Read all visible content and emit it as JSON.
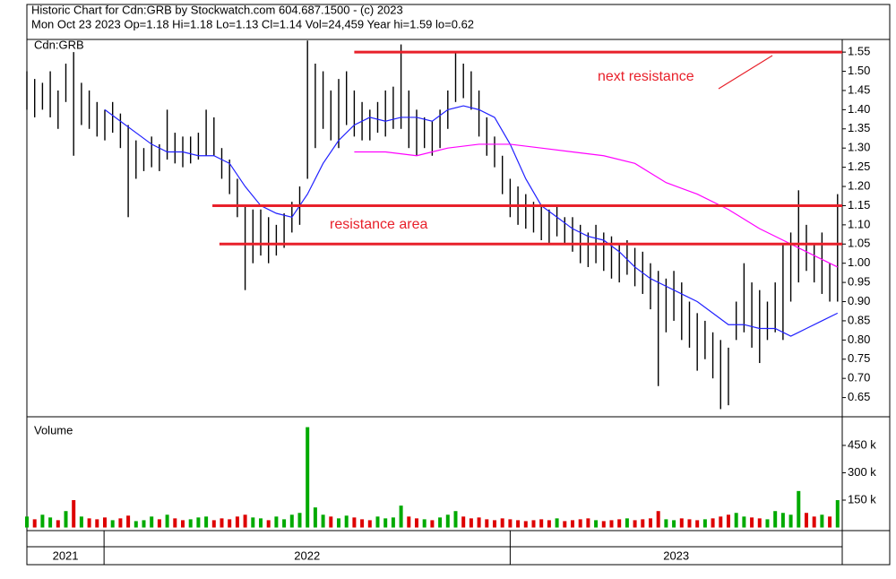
{
  "chart_data": {
    "type": "ohlc",
    "title": "Historic Chart for Cdn:GRB by Stockwatch.com 604.687.1500 - (c) 2023",
    "subtitle": "Mon Oct 23 2023   Op=1.18   Hi=1.18   Lo=1.13   Cl=1.14   Vol=24,459   Year hi=1.59   lo=0.62",
    "symbol_label": "Cdn:GRB",
    "volume_label": "Volume",
    "bar_color": "#000000",
    "x": [
      0,
      1,
      2,
      3,
      4,
      5,
      6,
      7,
      8,
      9,
      10,
      11,
      12,
      13,
      14,
      15,
      16,
      17,
      18,
      19,
      20,
      21,
      22,
      23,
      24,
      25,
      26,
      27,
      28,
      29,
      30,
      31,
      32,
      33,
      34,
      35,
      36,
      37,
      38,
      39,
      40,
      41,
      42,
      43,
      44,
      45,
      46,
      47,
      48,
      49,
      50,
      51,
      52,
      53,
      54,
      55,
      56,
      57,
      58,
      59,
      60,
      61,
      62,
      63,
      64,
      65,
      66,
      67,
      68,
      69,
      70,
      71,
      72,
      73,
      74,
      75,
      76,
      77,
      78,
      79,
      80,
      81,
      82,
      83,
      84,
      85,
      86,
      87,
      88,
      89,
      90,
      91,
      92,
      93,
      94,
      95,
      96,
      97,
      98,
      99,
      100,
      101,
      102,
      103,
      104
    ],
    "high": [
      1.5,
      1.48,
      1.47,
      1.5,
      1.45,
      1.52,
      1.55,
      1.47,
      1.45,
      1.42,
      1.4,
      1.42,
      1.39,
      1.36,
      1.32,
      1.3,
      1.33,
      1.31,
      1.4,
      1.34,
      1.33,
      1.33,
      1.34,
      1.4,
      1.38,
      1.3,
      1.27,
      1.22,
      1.15,
      1.14,
      1.14,
      1.12,
      1.1,
      1.13,
      1.16,
      1.2,
      1.58,
      1.52,
      1.5,
      1.45,
      1.48,
      1.5,
      1.45,
      1.42,
      1.4,
      1.42,
      1.45,
      1.46,
      1.57,
      1.45,
      1.4,
      1.38,
      1.37,
      1.4,
      1.45,
      1.55,
      1.52,
      1.5,
      1.45,
      1.38,
      1.33,
      1.28,
      1.22,
      1.2,
      1.18,
      1.16,
      1.15,
      1.14,
      1.15,
      1.12,
      1.12,
      1.1,
      1.08,
      1.1,
      1.08,
      1.07,
      1.05,
      1.06,
      1.04,
      1.03,
      1.0,
      0.98,
      0.96,
      0.98,
      0.95,
      0.9,
      0.87,
      0.85,
      0.82,
      0.8,
      0.78,
      0.9,
      1.0,
      0.95,
      0.93,
      0.9,
      0.95,
      1.05,
      1.08,
      1.19,
      1.1,
      1.05,
      1.08,
      1.0,
      1.18
    ],
    "low": [
      1.4,
      1.38,
      1.4,
      1.38,
      1.35,
      1.42,
      1.28,
      1.36,
      1.35,
      1.33,
      1.32,
      1.34,
      1.3,
      1.12,
      1.22,
      1.24,
      1.25,
      1.24,
      1.27,
      1.26,
      1.25,
      1.26,
      1.27,
      1.28,
      1.28,
      1.22,
      1.18,
      1.12,
      0.93,
      1.0,
      1.02,
      1.0,
      1.02,
      1.04,
      1.08,
      1.1,
      1.22,
      1.3,
      1.35,
      1.32,
      1.3,
      1.36,
      1.33,
      1.32,
      1.32,
      1.34,
      1.33,
      1.35,
      1.35,
      1.3,
      1.28,
      1.3,
      1.28,
      1.3,
      1.35,
      1.42,
      1.43,
      1.4,
      1.33,
      1.28,
      1.25,
      1.18,
      1.12,
      1.1,
      1.09,
      1.08,
      1.06,
      1.05,
      1.07,
      1.05,
      1.03,
      1.0,
      0.99,
      1.0,
      0.98,
      0.96,
      0.95,
      0.97,
      0.94,
      0.92,
      0.88,
      0.68,
      0.82,
      0.85,
      0.8,
      0.78,
      0.72,
      0.75,
      0.7,
      0.62,
      0.63,
      0.8,
      0.82,
      0.78,
      0.74,
      0.8,
      0.82,
      0.8,
      0.9,
      0.95,
      0.98,
      0.95,
      0.92,
      0.9,
      0.9
    ],
    "volume": [
      60000,
      45000,
      70000,
      55000,
      40000,
      90000,
      150000,
      60000,
      50000,
      45000,
      55000,
      40000,
      50000,
      65000,
      35000,
      40000,
      60000,
      45000,
      70000,
      50000,
      40000,
      45000,
      55000,
      60000,
      40000,
      50000,
      45000,
      60000,
      70000,
      55000,
      50000,
      40000,
      60000,
      45000,
      70000,
      80000,
      550000,
      110000,
      70000,
      60000,
      50000,
      65000,
      55000,
      45000,
      40000,
      60000,
      50000,
      55000,
      120000,
      60000,
      50000,
      45000,
      40000,
      55000,
      70000,
      90000,
      60000,
      50000,
      55000,
      45000,
      40000,
      50000,
      45000,
      40000,
      35000,
      40000,
      45000,
      40000,
      50000,
      35000,
      40000,
      45000,
      50000,
      40000,
      35000,
      40000,
      45000,
      50000,
      40000,
      45000,
      50000,
      90000,
      45000,
      40000,
      50000,
      45000,
      40000,
      45000,
      50000,
      60000,
      70000,
      80000,
      60000,
      55000,
      50000,
      45000,
      90000,
      80000,
      70000,
      200000,
      80000,
      60000,
      70000,
      60000,
      150000
    ],
    "up_color": "#00aa00",
    "down_color": "#dd0000",
    "averages": [
      {
        "color": "#2020ff",
        "x": [
          10,
          12,
          14,
          16,
          18,
          20,
          22,
          24,
          26,
          28,
          30,
          32,
          34,
          36,
          38,
          40,
          42,
          44,
          46,
          48,
          50,
          52,
          54,
          56,
          58,
          60,
          62,
          64,
          66,
          68,
          70,
          72,
          74,
          76,
          78,
          80,
          82,
          84,
          86,
          88,
          90,
          92,
          94,
          96,
          98,
          100,
          102,
          104
        ],
        "values": [
          1.4,
          1.37,
          1.34,
          1.31,
          1.29,
          1.29,
          1.28,
          1.28,
          1.26,
          1.2,
          1.15,
          1.13,
          1.12,
          1.18,
          1.26,
          1.32,
          1.36,
          1.38,
          1.37,
          1.38,
          1.38,
          1.37,
          1.4,
          1.41,
          1.4,
          1.38,
          1.31,
          1.22,
          1.15,
          1.12,
          1.09,
          1.07,
          1.06,
          1.03,
          0.99,
          0.96,
          0.94,
          0.92,
          0.9,
          0.87,
          0.84,
          0.84,
          0.83,
          0.83,
          0.81,
          0.83,
          0.85,
          0.87
        ]
      },
      {
        "color": "#ff00ff",
        "x": [
          42,
          46,
          50,
          54,
          58,
          62,
          66,
          70,
          74,
          78,
          82,
          86,
          90,
          94,
          98,
          102,
          104
        ],
        "values": [
          1.29,
          1.29,
          1.28,
          1.3,
          1.31,
          1.31,
          1.3,
          1.29,
          1.28,
          1.26,
          1.21,
          1.18,
          1.14,
          1.09,
          1.05,
          1.01,
          0.99
        ]
      }
    ],
    "resistance_color": "#e8202a",
    "resistance_lines": [
      {
        "value": 1.55,
        "x_from": 42
      },
      {
        "value": 1.15,
        "x_from": 23.8
      },
      {
        "value": 1.05,
        "x_from": 24.7
      }
    ],
    "annotations": [
      "next resistance",
      "resistance area"
    ],
    "xlim": [
      0,
      104.6
    ],
    "xticks": [
      {
        "value": 0,
        "label": "2021"
      },
      {
        "value": 9.9,
        "label": "2022"
      },
      {
        "value": 62,
        "label": "2023"
      }
    ],
    "ylim": [
      0.6,
      1.583
    ],
    "yticks": [
      0.65,
      {
        "value": 0.7,
        "label": "0.70"
      },
      0.75,
      {
        "value": 0.8,
        "label": "0.80"
      },
      0.85,
      {
        "value": 0.9,
        "label": "0.90"
      },
      0.95,
      {
        "value": 1,
        "label": "1.00"
      },
      1.05,
      {
        "value": 1.1,
        "label": "1.10"
      },
      1.15,
      {
        "value": 1.2,
        "label": "1.20"
      },
      1.25,
      {
        "value": 1.3,
        "label": "1.30"
      },
      1.35,
      {
        "value": 1.4,
        "label": "1.40"
      },
      1.45,
      {
        "value": 1.5,
        "label": "1.50"
      },
      1.55
    ],
    "volume_ylim": [
      -17000,
      602000
    ],
    "volume_yticks": [
      {
        "value": 150000,
        "label": "150 k"
      },
      {
        "value": 300000,
        "label": "300 k"
      },
      {
        "value": 450000,
        "label": "450 k"
      }
    ]
  }
}
